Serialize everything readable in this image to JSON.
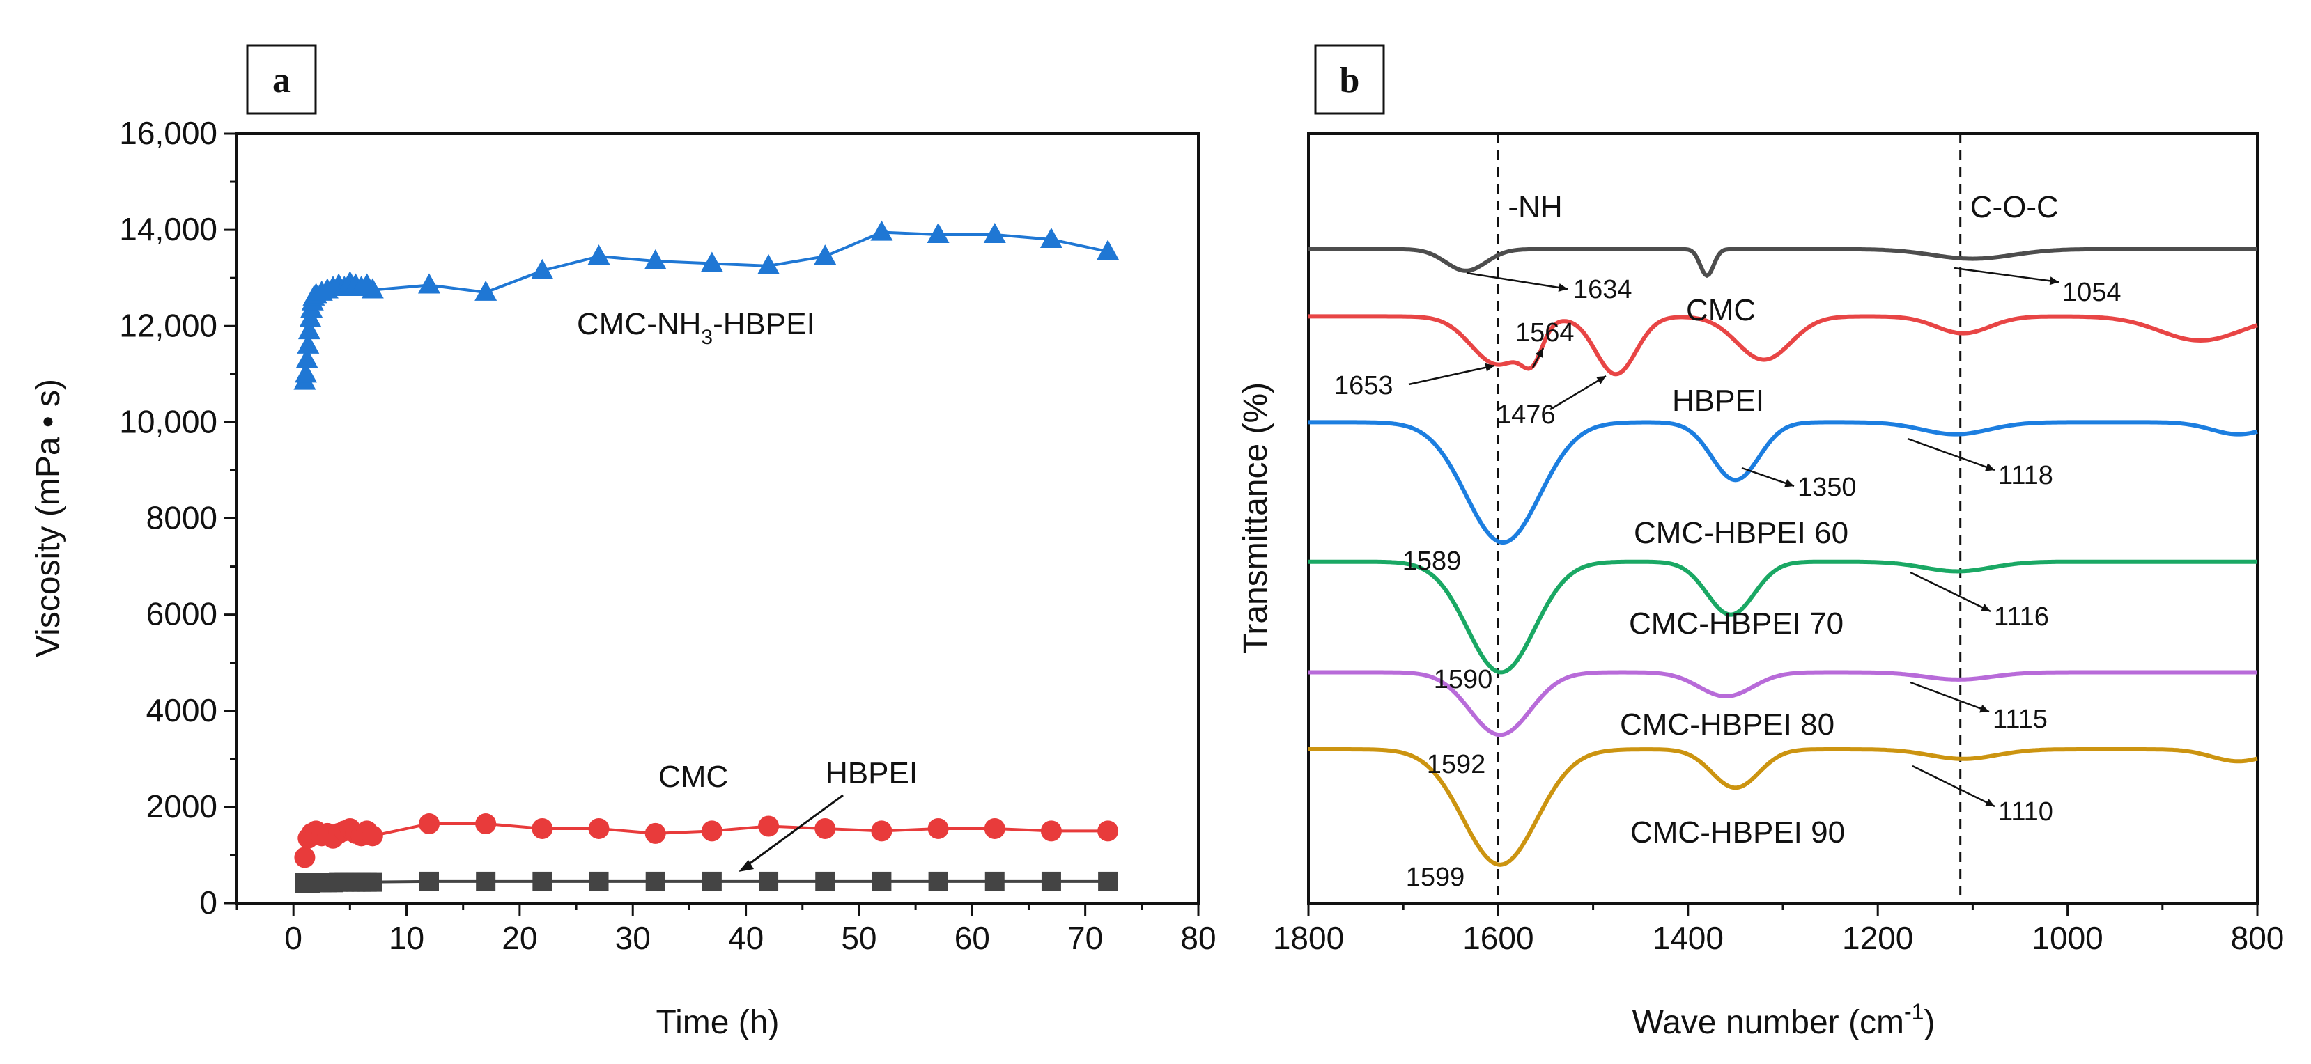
{
  "chart_data": [
    {
      "panel": "a",
      "type": "line",
      "xlabel": "Time (h)",
      "ylabel": "Viscosity (mPa • s)",
      "xlim": [
        -5,
        80
      ],
      "ylim": [
        0,
        16000
      ],
      "xticks": [
        0,
        10,
        20,
        30,
        40,
        50,
        60,
        70,
        80
      ],
      "yticks": [
        0,
        2000,
        4000,
        6000,
        8000,
        10000,
        12000,
        14000,
        16000
      ],
      "ytick_labels": [
        "0",
        "2000",
        "4000",
        "6000",
        "8000",
        "10,000",
        "12,000",
        "14,000",
        "16,000"
      ],
      "series": [
        {
          "name": "CMC-NH3-HBPEI",
          "label_main": "CMC-NH",
          "label_sub": "3",
          "label_tail": "-HBPEI",
          "color": "#1f77d4",
          "marker": "triangle",
          "x": [
            1.0,
            1.1,
            1.2,
            1.3,
            1.4,
            1.5,
            1.6,
            1.7,
            1.8,
            2,
            2.5,
            3,
            3.5,
            4,
            4.5,
            5,
            5.5,
            6,
            6.5,
            7,
            12,
            17,
            22,
            27,
            32,
            37,
            42,
            47,
            52,
            57,
            62,
            67,
            72
          ],
          "y": [
            10850,
            11000,
            11300,
            11600,
            11900,
            12150,
            12350,
            12500,
            12600,
            12650,
            12700,
            12750,
            12800,
            12850,
            12800,
            12900,
            12850,
            12800,
            12850,
            12750,
            12850,
            12700,
            13150,
            13450,
            13350,
            13300,
            13250,
            13450,
            13950,
            13900,
            13900,
            13800,
            13550
          ]
        },
        {
          "name": "CMC",
          "color": "#e83b3b",
          "marker": "circle",
          "x": [
            1.0,
            1.3,
            1.6,
            2,
            2.5,
            3,
            3.5,
            4,
            4.5,
            5,
            5.5,
            6,
            6.5,
            7,
            12,
            17,
            22,
            27,
            32,
            37,
            42,
            47,
            52,
            57,
            62,
            67,
            72
          ],
          "y": [
            950,
            1350,
            1450,
            1500,
            1400,
            1450,
            1350,
            1450,
            1500,
            1550,
            1450,
            1400,
            1500,
            1400,
            1650,
            1650,
            1550,
            1550,
            1450,
            1500,
            1600,
            1550,
            1500,
            1550,
            1550,
            1500,
            1500
          ]
        },
        {
          "name": "HBPEI",
          "color": "#444444",
          "marker": "square",
          "x": [
            1.0,
            1.5,
            2,
            2.5,
            3,
            3.5,
            4,
            4.5,
            5,
            5.5,
            6,
            6.5,
            7,
            12,
            17,
            22,
            27,
            32,
            37,
            42,
            47,
            52,
            57,
            62,
            67,
            72
          ],
          "y": [
            420,
            420,
            430,
            430,
            430,
            430,
            440,
            440,
            440,
            440,
            440,
            440,
            440,
            450,
            450,
            450,
            450,
            450,
            450,
            450,
            450,
            450,
            450,
            450,
            450,
            450
          ]
        }
      ],
      "annotations": [
        "CMC",
        "HBPEI"
      ]
    },
    {
      "panel": "b",
      "type": "line",
      "xlabel": "Wave number (cm",
      "xlabel_sup": "-1",
      "xlabel_tail": ")",
      "ylabel": "Transmittance (%)",
      "xlim": [
        1800,
        800
      ],
      "xticks": [
        1800,
        1600,
        1400,
        1200,
        1000,
        800
      ],
      "reference_lines": [
        {
          "x": 1600,
          "label": "-NH"
        },
        {
          "x": 1113,
          "label": "C-O-C"
        }
      ],
      "series": [
        {
          "name": "CMC",
          "color": "#4d4d4d",
          "baseline": 13.6,
          "peak_labels": [
            "1634",
            "1054"
          ],
          "features": [
            [
              1634,
              0.45,
              30
            ],
            [
              1380,
              0.55,
              10
            ],
            [
              1100,
              0.2,
              60
            ]
          ]
        },
        {
          "name": "HBPEI",
          "color": "#e84545",
          "baseline": 12.2,
          "peak_labels": [
            "1653",
            "1564",
            "1476"
          ],
          "features": [
            [
              1600,
              1.0,
              40
            ],
            [
              1564,
              0.6,
              15
            ],
            [
              1476,
              1.2,
              30
            ],
            [
              1320,
              0.9,
              40
            ],
            [
              1110,
              0.35,
              40
            ],
            [
              860,
              0.5,
              60
            ]
          ]
        },
        {
          "name": "CMC-HBPEI 60",
          "color": "#1c7ee0",
          "baseline": 10.0,
          "peak_labels": [
            "1589",
            "1350",
            "1118"
          ],
          "features": [
            [
              1595,
              2.5,
              55
            ],
            [
              1350,
              1.2,
              35
            ],
            [
              1118,
              0.25,
              50
            ],
            [
              820,
              0.25,
              40
            ]
          ]
        },
        {
          "name": "CMC-HBPEI 70",
          "color": "#1aa864",
          "baseline": 7.1,
          "peak_labels": [
            "1590",
            "1116"
          ],
          "features": [
            [
              1597,
              2.3,
              50
            ],
            [
              1355,
              1.1,
              35
            ],
            [
              1116,
              0.2,
              50
            ]
          ]
        },
        {
          "name": "CMC-HBPEI 80",
          "color": "#b86bd9",
          "baseline": 4.8,
          "peak_labels": [
            "1592",
            "1115"
          ],
          "features": [
            [
              1598,
              1.3,
              45
            ],
            [
              1360,
              0.5,
              40
            ],
            [
              1115,
              0.15,
              50
            ]
          ]
        },
        {
          "name": "CMC-HBPEI 90",
          "color": "#cc9410",
          "baseline": 3.2,
          "peak_labels": [
            "1599",
            "1110"
          ],
          "features": [
            [
              1598,
              2.4,
              55
            ],
            [
              1350,
              0.8,
              35
            ],
            [
              1110,
              0.2,
              50
            ],
            [
              820,
              0.25,
              40
            ]
          ]
        }
      ]
    }
  ]
}
